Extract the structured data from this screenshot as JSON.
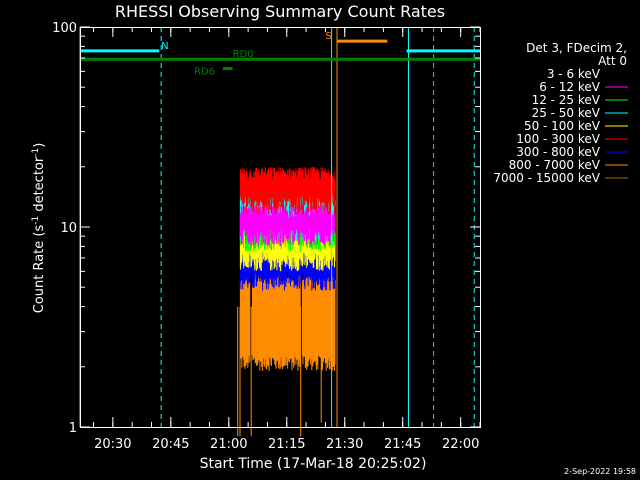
{
  "chart_data": {
    "type": "line",
    "title": "RHESSI Observing Summary Count Rates",
    "xlabel": "Start Time (17-Mar-18 20:25:02)",
    "ylabel": "Count Rate (s",
    "ylabel_sup": "-1",
    "ylabel_tail": " detector",
    "ylabel_tail_sup": "-1",
    "ylabel_close": ")",
    "y_scale": "log",
    "ylim": [
      1,
      100
    ],
    "y_ticks": [
      {
        "value": 1,
        "label": "1"
      },
      {
        "value": 10,
        "label": "10"
      },
      {
        "value": 100,
        "label": "100"
      }
    ],
    "xlim_minutes": [
      -3.5,
      100
    ],
    "x_ticks": [
      {
        "minutes": 5,
        "label": "20:30"
      },
      {
        "minutes": 20,
        "label": "20:45"
      },
      {
        "minutes": 35,
        "label": "21:00"
      },
      {
        "minutes": 50,
        "label": "21:15"
      },
      {
        "minutes": 65,
        "label": "21:30"
      },
      {
        "minutes": 80,
        "label": "21:45"
      },
      {
        "minutes": 95,
        "label": "22:00"
      }
    ],
    "legend_title": [
      "Det 3, FDecim 2,",
      "Att 0"
    ],
    "legend_position": "right",
    "series": [
      {
        "name": "3 - 6 keV",
        "color": "#000000",
        "low": 1.0,
        "high": 1.0,
        "drawn": false
      },
      {
        "name": "6 - 12 keV",
        "color": "#ff00ff",
        "low": 8.0,
        "high": 13.0,
        "drawn": true
      },
      {
        "name": "12 - 25 keV",
        "color": "#00ff00",
        "low": 7.5,
        "high": 14.0,
        "drawn": true
      },
      {
        "name": "25 - 50 keV",
        "color": "#00ffff",
        "low": 8.5,
        "high": 16.0,
        "drawn": true
      },
      {
        "name": "50 - 100 keV",
        "color": "#ffff00",
        "low": 6.0,
        "high": 11.0,
        "drawn": true
      },
      {
        "name": "100 - 300 keV",
        "color": "#ff0000",
        "low": 11.5,
        "high": 20.0,
        "drawn": true
      },
      {
        "name": "300 - 800 keV",
        "color": "#0000ff",
        "low": 4.8,
        "high": 10.5,
        "drawn": true
      },
      {
        "name": "800 - 7000 keV",
        "color": "#ff8c00",
        "low": 1.9,
        "high": 6.0,
        "drawn": true
      },
      {
        "name": "7000 - 15000 keV",
        "color": "#8b7500",
        "low": 1.0,
        "high": 1.0,
        "drawn": false
      }
    ],
    "data_span_minutes": [
      38.0,
      62.5
    ],
    "orange_gaps_minutes": [
      [
        37.0,
        38.0
      ],
      [
        40.5,
        41.0
      ],
      [
        53.5,
        54.0
      ]
    ],
    "orange_dips": [
      {
        "minutes": 37.3,
        "low": 0.9
      },
      {
        "minutes": 37.9,
        "low": 0.9
      },
      {
        "minutes": 40.8,
        "low": 0.9
      },
      {
        "minutes": 53.6,
        "low": 0.9
      },
      {
        "minutes": 58.9,
        "low": 1.05
      }
    ],
    "state_bars": [
      {
        "label": "N",
        "color": "#00ffff",
        "y": 76,
        "segments": [
          [
            -3.5,
            17.0
          ],
          [
            81.0,
            100.0
          ]
        ],
        "label_at": 17.5
      },
      {
        "label": "S",
        "color": "#ff8c00",
        "y": 85,
        "segments": [
          [
            63.0,
            76.0
          ]
        ],
        "label_at": 60.0
      },
      {
        "label": "RD0",
        "color": "#008000",
        "y": 69,
        "segments": [
          [
            -3.5,
            100.0
          ]
        ],
        "label_at": 36.0
      },
      {
        "label": "RD6",
        "color": "#008000",
        "y": 62,
        "segments": [
          [
            33.5,
            36.0
          ]
        ],
        "label_at": 26.0
      }
    ],
    "vertical_lines": [
      {
        "minutes": -3.5,
        "color": "#00ffff",
        "dash": false
      },
      {
        "minutes": 17.5,
        "color": "#00ffff",
        "dash": true
      },
      {
        "minutes": 61.6,
        "color": "#00ffff",
        "dash": false
      },
      {
        "minutes": 63.0,
        "color": "#ff8c00",
        "dash": false
      },
      {
        "minutes": 81.5,
        "color": "#00ffff",
        "dash": false
      },
      {
        "minutes": 88.0,
        "color": "#ff8c00",
        "dash": true
      },
      {
        "minutes": 98.5,
        "color": "#00ffff",
        "dash": true
      }
    ]
  },
  "footer": {
    "date_stamp": "2-Sep-2022 19:58"
  }
}
